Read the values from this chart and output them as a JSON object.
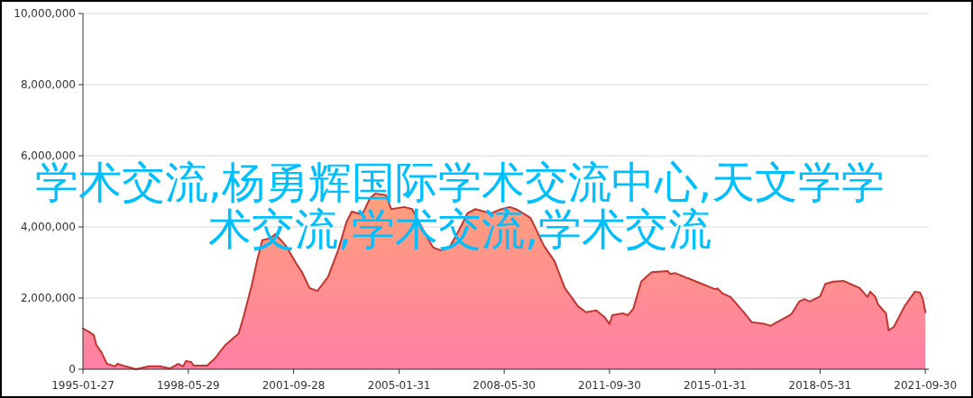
{
  "chart_data": {
    "type": "area",
    "annotations": [
      "学术交流,杨勇辉国际学术交流中心,天文学学术交流,学术交流,学术交流"
    ],
    "xlim": [
      "1995-01-27",
      "2021-11-09"
    ],
    "xticks": [
      "1995-01-27",
      "1998-05-29",
      "2001-09-28",
      "2005-01-31",
      "2008-05-30",
      "2011-09-30",
      "2015-01-31",
      "2018-05-31",
      "2021-09-30"
    ],
    "ylim": [
      0,
      10000000
    ],
    "yticks": [
      {
        "value": 0,
        "label": "0"
      },
      {
        "value": 2000000,
        "label": "2,000,000"
      },
      {
        "value": 4000000,
        "label": "4,000,000"
      },
      {
        "value": 6000000,
        "label": "6,000,000"
      },
      {
        "value": 8000000,
        "label": "8,000,000"
      },
      {
        "value": 10000000,
        "label": "10,000,000"
      }
    ],
    "grid": "y",
    "x": [
      "1995-01-27",
      "1995-04",
      "1995-06",
      "1995-07",
      "1995-09",
      "1995-11",
      "1996-02",
      "1996-03",
      "1996-06",
      "1996-10",
      "1997-03",
      "1997-07",
      "1997-11",
      "1998-02",
      "1998-04",
      "1998-05",
      "1998-07",
      "1998-08",
      "1999-01",
      "1999-04",
      "1999-08",
      "2000-01",
      "2000-03",
      "2000-06",
      "2000-08",
      "2000-10",
      "2001-01",
      "2001-03",
      "2001-07",
      "2001-11",
      "2002-01",
      "2002-04",
      "2002-07",
      "2002-11",
      "2003-03",
      "2003-06",
      "2003-08",
      "2003-12",
      "2004-03",
      "2004-05",
      "2004-09",
      "2004-11",
      "2005-04",
      "2005-07",
      "2005-12",
      "2006-03",
      "2006-06",
      "2006-09",
      "2006-12",
      "2007-04",
      "2007-07",
      "2008-01",
      "2008-04",
      "2008-08",
      "2008-11",
      "2009-04",
      "2009-09",
      "2010-01",
      "2010-05",
      "2010-10",
      "2011-01",
      "2011-05",
      "2011-08",
      "2011-10",
      "2011-11",
      "2012-03",
      "2012-05",
      "2012-07",
      "2012-10",
      "2012-12",
      "2013-02",
      "2013-08",
      "2013-09",
      "2013-11",
      "2014-03",
      "2014-08",
      "2015-02",
      "2015-03",
      "2015-05",
      "2015-08",
      "2016-01",
      "2016-04",
      "2016-09",
      "2016-11",
      "2017-02",
      "2017-07",
      "2017-10",
      "2017-12",
      "2018-02",
      "2018-06",
      "2018-08",
      "2018-11",
      "2019-03",
      "2019-06",
      "2019-09",
      "2019-12",
      "2020-01",
      "2020-03",
      "2020-04",
      "2020-07",
      "2020-08",
      "2020-10",
      "2021-02",
      "2021-04",
      "2021-06",
      "2021-08",
      "2021-09",
      "2021-10"
    ],
    "series": [
      {
        "color": "#c23531",
        "values": [
          1140000,
          1060000,
          960000,
          680000,
          460000,
          150000,
          80000,
          150000,
          80000,
          0,
          80000,
          80000,
          20000,
          150000,
          80000,
          230000,
          200000,
          100000,
          100000,
          300000,
          680000,
          1000000,
          1500000,
          2360000,
          3040000,
          3630000,
          3680000,
          3800000,
          3470000,
          2960000,
          2740000,
          2280000,
          2200000,
          2600000,
          3370000,
          4130000,
          4430000,
          4350000,
          4810000,
          4940000,
          4890000,
          4500000,
          4560000,
          4500000,
          3800000,
          3420000,
          3340000,
          3420000,
          3800000,
          4380000,
          4500000,
          4380000,
          4480000,
          4560000,
          4480000,
          4250000,
          3470000,
          3040000,
          2280000,
          1770000,
          1600000,
          1650000,
          1470000,
          1270000,
          1520000,
          1570000,
          1520000,
          1700000,
          2460000,
          2600000,
          2730000,
          2760000,
          2680000,
          2700000,
          2580000,
          2430000,
          2250000,
          2270000,
          2130000,
          2030000,
          1600000,
          1320000,
          1270000,
          1220000,
          1340000,
          1540000,
          1900000,
          1970000,
          1900000,
          2050000,
          2400000,
          2460000,
          2480000,
          2380000,
          2280000,
          2030000,
          2180000,
          2030000,
          1820000,
          1570000,
          1090000,
          1190000,
          1770000,
          1970000,
          2180000,
          2150000,
          1970000,
          1600000
        ]
      }
    ]
  }
}
